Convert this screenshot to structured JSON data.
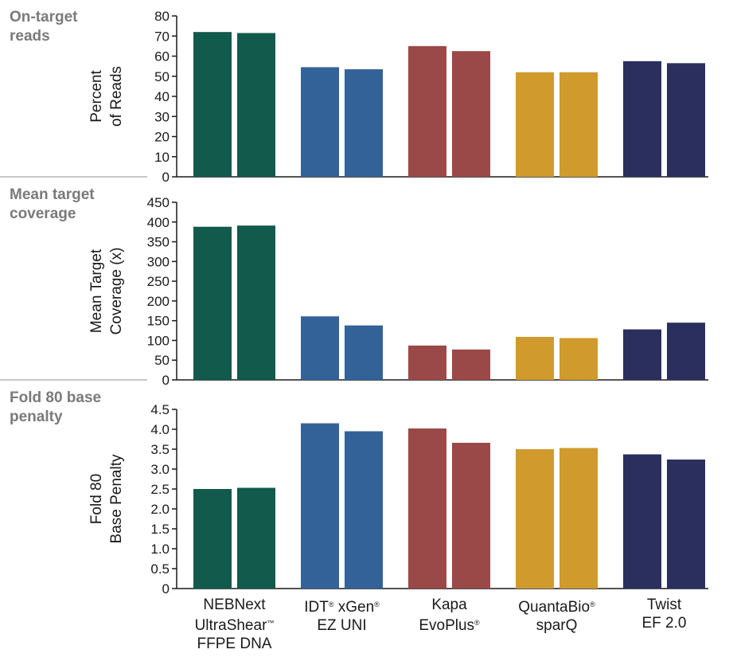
{
  "chart_data": [
    {
      "type": "bar",
      "section_title": "On-target\nreads",
      "ylabel": [
        "Percent",
        "of Reads"
      ],
      "ylim": [
        0,
        80
      ],
      "yticks": [
        "0",
        "10",
        "20",
        "30",
        "40",
        "50",
        "60",
        "70",
        "80"
      ],
      "categories": [
        "NEBNext UltraShear™ FFPE DNA",
        "IDT® xGen® EZ UNI",
        "Kapa EvoPlus®",
        "QuantaBio® sparQ",
        "Twist EF 2.0"
      ],
      "values": [
        [
          72,
          71.5
        ],
        [
          54.5,
          53.5
        ],
        [
          65,
          62.5
        ],
        [
          52,
          52
        ],
        [
          57.5,
          56.5
        ]
      ]
    },
    {
      "type": "bar",
      "section_title": "Mean target\ncoverage",
      "ylabel": [
        "Mean Target",
        "Coverage (x)"
      ],
      "ylim": [
        0,
        450
      ],
      "yticks": [
        "0",
        "50",
        "100",
        "150",
        "200",
        "250",
        "300",
        "350",
        "400",
        "450"
      ],
      "categories": [
        "NEBNext UltraShear™ FFPE DNA",
        "IDT® xGen® EZ UNI",
        "Kapa EvoPlus®",
        "QuantaBio® sparQ",
        "Twist EF 2.0"
      ],
      "values": [
        [
          388,
          391
        ],
        [
          161,
          138
        ],
        [
          87,
          77
        ],
        [
          109,
          106
        ],
        [
          128,
          145
        ]
      ]
    },
    {
      "type": "bar",
      "section_title": "Fold 80 base\npenalty",
      "ylabel": [
        "Fold 80",
        "Base Penalty"
      ],
      "ylim": [
        0,
        4.5
      ],
      "yticks": [
        "0",
        "0.5",
        "1.0",
        "1.5",
        "2.0",
        "2.5",
        "3.0",
        "3.5",
        "4.0",
        "4.5"
      ],
      "categories": [
        "NEBNext UltraShear™ FFPE DNA",
        "IDT® xGen® EZ UNI",
        "Kapa EvoPlus®",
        "QuantaBio® sparQ",
        "Twist EF 2.0"
      ],
      "values": [
        [
          2.5,
          2.53
        ],
        [
          4.15,
          3.95
        ],
        [
          4.02,
          3.66
        ],
        [
          3.5,
          3.53
        ],
        [
          3.37,
          3.24
        ]
      ]
    }
  ],
  "category_labels": [
    {
      "lines": [
        [
          "NEBNext",
          ""
        ],
        [
          "UltraShear",
          "™"
        ],
        [
          "FFPE DNA",
          ""
        ]
      ]
    },
    {
      "lines": [
        [
          "IDT",
          "®"
        ],
        [
          " xGen",
          "®"
        ],
        [
          "EZ UNI",
          ""
        ]
      ]
    },
    {
      "lines": [
        [
          "Kapa",
          ""
        ],
        [
          "EvoPlus",
          "®"
        ]
      ]
    },
    {
      "lines": [
        [
          "QuantaBio",
          "®"
        ],
        [
          "sparQ",
          ""
        ]
      ]
    },
    {
      "lines": [
        [
          "Twist",
          ""
        ],
        [
          "EF 2.0",
          ""
        ]
      ]
    }
  ],
  "colors": [
    "#125a4b",
    "#336298",
    "#9b4848",
    "#d09b2c",
    "#2a2f5e"
  ],
  "separator_color": "#b5b5b5"
}
